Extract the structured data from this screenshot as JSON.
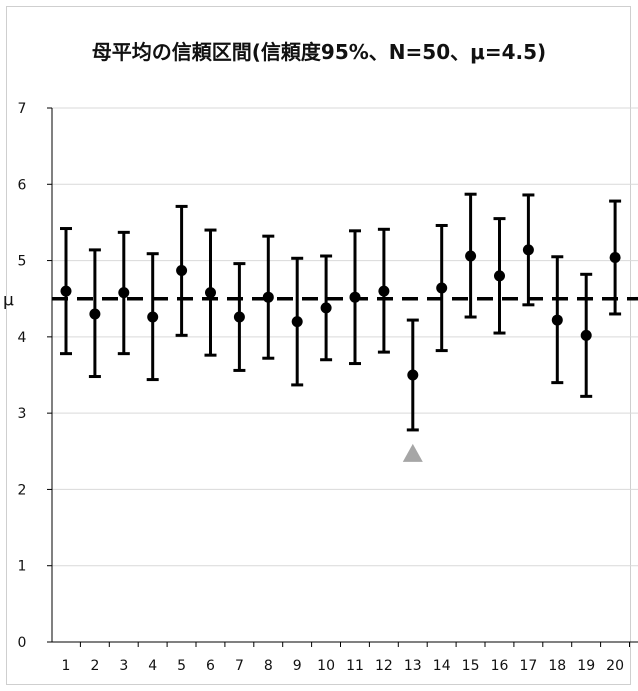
{
  "chart_data": {
    "type": "scatter",
    "title": "母平均の信頼区間(信頼度95%、N=50、μ=4.5)",
    "xlabel": "",
    "ylabel": "",
    "ylim": [
      0,
      7
    ],
    "yticks": [
      "0",
      "1",
      "2",
      "3",
      "4",
      "5",
      "6",
      "7"
    ],
    "categories": [
      "1",
      "2",
      "3",
      "4",
      "5",
      "6",
      "7",
      "8",
      "9",
      "10",
      "11",
      "12",
      "13",
      "14",
      "15",
      "16",
      "17",
      "18",
      "19",
      "20"
    ],
    "grid": true,
    "reference_line": {
      "label": "μ",
      "value": 4.5,
      "style": "dashed"
    },
    "series": [
      {
        "mean": [
          4.6,
          4.3,
          4.58,
          4.26,
          4.87,
          4.58,
          4.26,
          4.52,
          4.2,
          4.38,
          4.52,
          4.6,
          3.5,
          4.64,
          5.06,
          4.8,
          5.14,
          4.22,
          4.02,
          5.04
        ],
        "lower": [
          3.78,
          3.48,
          3.78,
          3.44,
          4.02,
          3.76,
          3.56,
          3.72,
          3.37,
          3.7,
          3.65,
          3.8,
          2.78,
          3.82,
          4.26,
          4.05,
          4.42,
          3.4,
          3.22,
          4.3
        ],
        "upper": [
          5.42,
          5.14,
          5.37,
          5.09,
          5.71,
          5.4,
          4.96,
          5.32,
          5.03,
          5.06,
          5.39,
          5.41,
          4.22,
          5.46,
          5.87,
          5.55,
          5.86,
          5.05,
          4.82,
          5.78
        ]
      }
    ],
    "marker": {
      "category": "13",
      "shape": "triangle",
      "color": "#a6a6a6"
    },
    "colors": {
      "points": "#000000",
      "reference": "#000000",
      "grid": "#d9d9d9"
    }
  }
}
